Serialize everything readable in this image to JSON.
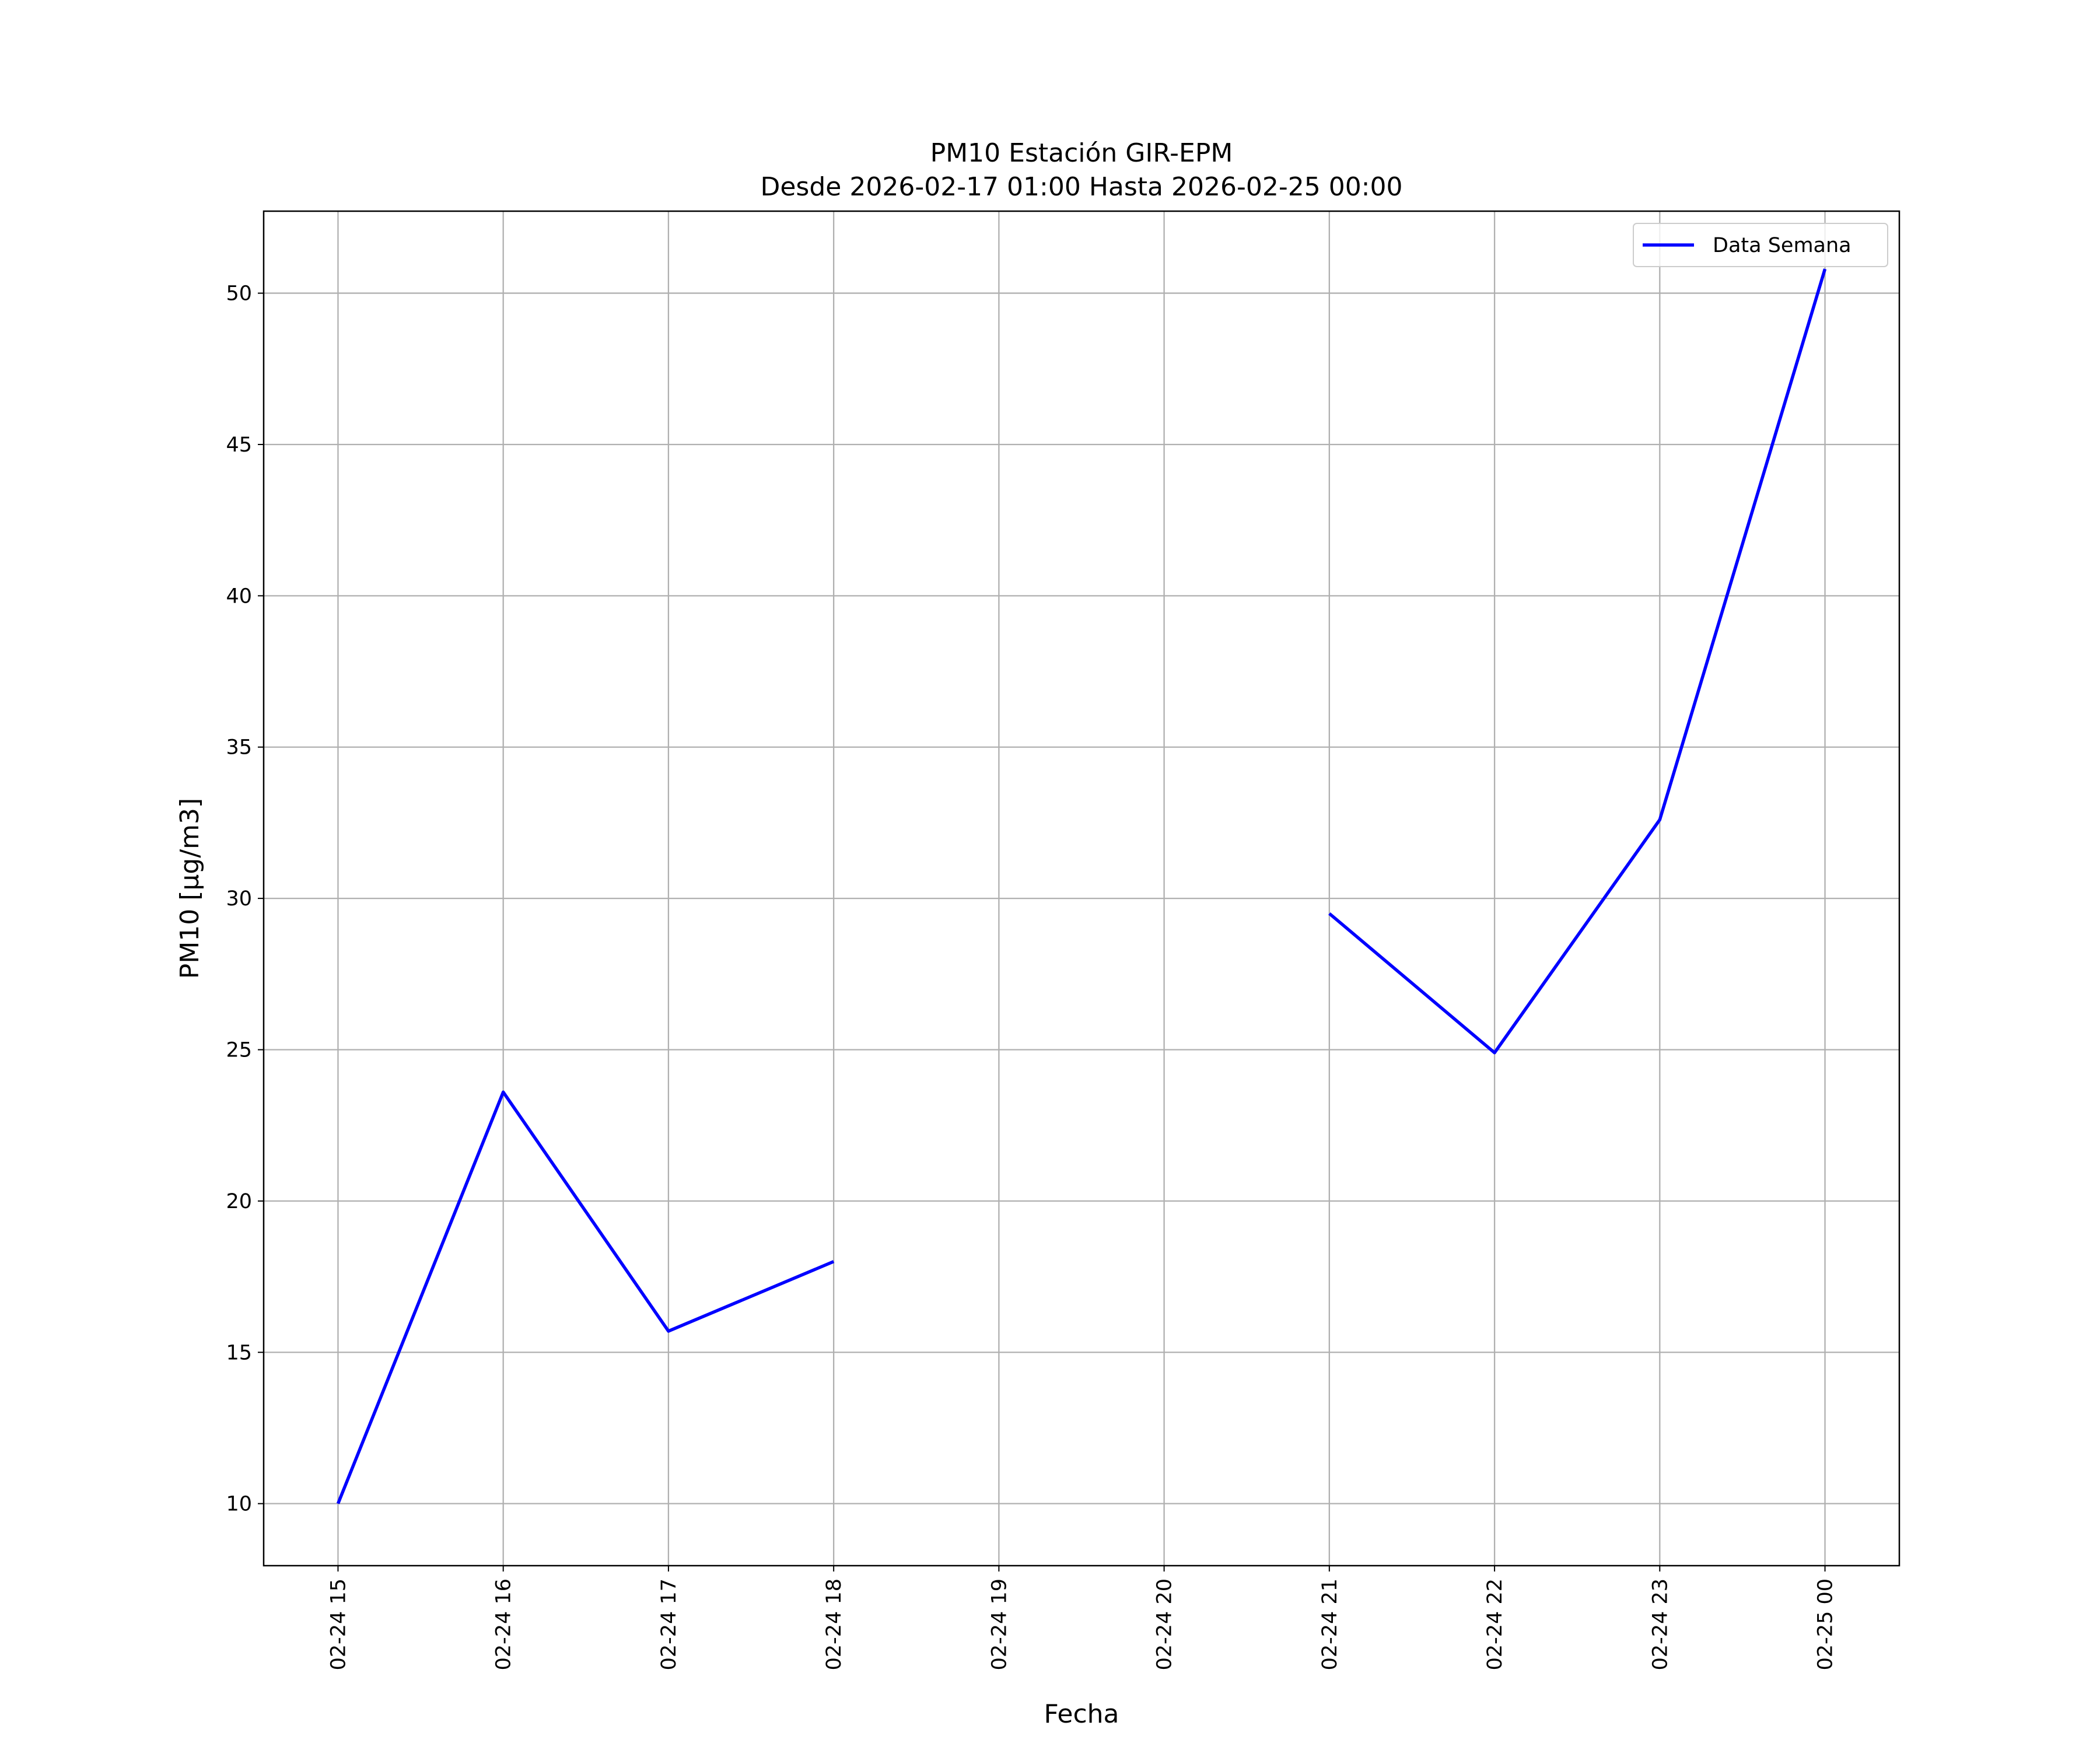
{
  "chart_data": {
    "type": "line",
    "title": "PM10 Estación GIR-EPM",
    "subtitle": "Desde 2026-02-17 01:00 Hasta 2026-02-25 00:00",
    "x_label": "Fecha",
    "y_label": "PM10 [μg/m3]",
    "categories": [
      "02-24 15",
      "02-24 16",
      "02-24 17",
      "02-24 18",
      "02-24 19",
      "02-24 20",
      "02-24 21",
      "02-24 22",
      "02-24 23",
      "02-25 00"
    ],
    "series": [
      {
        "name": "Data Semana",
        "color": "#0000ff",
        "values": [
          10,
          23.6,
          15.7,
          18,
          null,
          null,
          29.5,
          24.9,
          32.6,
          50.8
        ]
      }
    ],
    "ylim": [
      7.95,
      52.71
    ],
    "yticks": [
      10,
      15,
      20,
      25,
      30,
      35,
      40,
      45,
      50
    ],
    "grid": true,
    "legend": "upper right"
  }
}
